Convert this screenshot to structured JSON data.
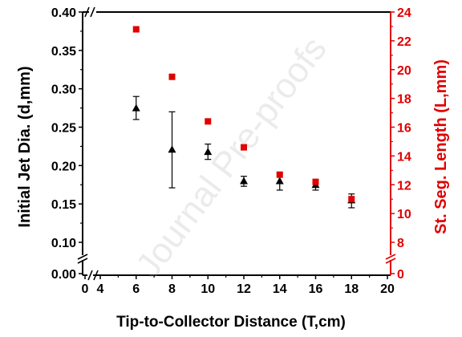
{
  "chart_data": {
    "type": "scatter",
    "title": "",
    "xlabel": "Tip-to-Collector Distance (T,cm)",
    "ylabel_left": "Initial Jet Dia. (d,mm)",
    "ylabel_right": "St. Seg. Length (L,mm)",
    "watermark": "Journal Pre-proofs",
    "xlim": [
      0,
      20
    ],
    "x_ticks": [
      "0",
      "4",
      "6",
      "8",
      "10",
      "12",
      "14",
      "16",
      "18",
      "20"
    ],
    "y_left_ticks": [
      "0.00",
      "0.10",
      "0.15",
      "0.20",
      "0.25",
      "0.30",
      "0.35",
      "0.40"
    ],
    "y_right_ticks": [
      "0",
      "8",
      "10",
      "12",
      "14",
      "16",
      "18",
      "20",
      "22",
      "24"
    ],
    "axis_breaks": true,
    "colors": {
      "left_series": "#000000",
      "right_series": "#e00000",
      "axis_left": "#000000",
      "axis_right": "#e00000"
    },
    "series": [
      {
        "axis": "left",
        "marker": "triangle",
        "x": [
          6,
          8,
          10,
          12,
          14,
          16,
          18
        ],
        "y": [
          0.275,
          0.221,
          0.218,
          0.18,
          0.18,
          0.175,
          0.155
        ],
        "yerr_low": [
          0.26,
          0.171,
          0.208,
          0.173,
          0.168,
          0.168,
          0.145
        ],
        "yerr_high": [
          0.29,
          0.27,
          0.228,
          0.186,
          0.19,
          0.182,
          0.163
        ]
      },
      {
        "axis": "right",
        "marker": "square",
        "x": [
          6,
          8,
          10,
          12,
          14,
          16,
          18
        ],
        "y": [
          22.8,
          19.5,
          16.4,
          14.6,
          12.7,
          12.2,
          11.0
        ]
      }
    ]
  }
}
